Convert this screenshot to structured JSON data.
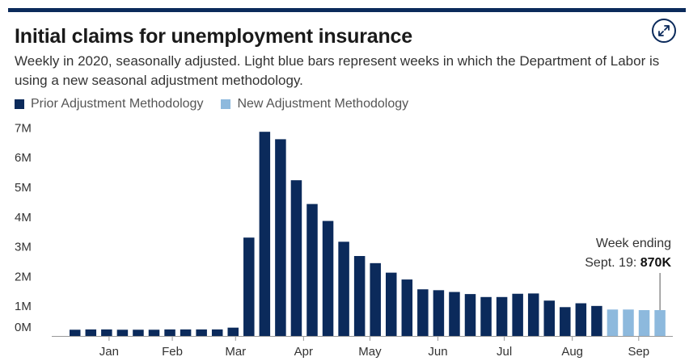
{
  "header": {
    "title": "Initial claims for unemployment insurance",
    "subtitle": "Weekly in 2020, seasonally adjusted. Light blue bars represent weeks in which the Department of Labor is using a new seasonal adjustment methodology.",
    "expand_icon": "expand-arrows-icon"
  },
  "colors": {
    "prior": "#0b2a5b",
    "new": "#8db9dd",
    "accent": "#0b2a5b"
  },
  "chart_data": {
    "type": "bar",
    "title": "Initial claims for unemployment insurance",
    "legend": [
      {
        "name": "Prior Adjustment Methodology",
        "color": "#0b2a5b"
      },
      {
        "name": "New Adjustment Methodology",
        "color": "#8db9dd"
      }
    ],
    "legend_position": "top-left",
    "y_ticks": [
      {
        "label": "0M",
        "value": 0.3
      },
      {
        "label": "1M",
        "value": 1
      },
      {
        "label": "2M",
        "value": 2
      },
      {
        "label": "3M",
        "value": 3
      },
      {
        "label": "4M",
        "value": 4
      },
      {
        "label": "5M",
        "value": 5
      },
      {
        "label": "6M",
        "value": 6
      },
      {
        "label": "7M",
        "value": 7
      }
    ],
    "ylim": [
      0,
      7
    ],
    "month_labels": [
      {
        "label": "Jan",
        "week": 2.5
      },
      {
        "label": "Feb",
        "week": 6.5
      },
      {
        "label": "Mar",
        "week": 10.5
      },
      {
        "label": "Apr",
        "week": 14.8
      },
      {
        "label": "May",
        "week": 19.0
      },
      {
        "label": "Jun",
        "week": 23.3
      },
      {
        "label": "Jul",
        "week": 27.5
      },
      {
        "label": "Aug",
        "week": 31.8
      },
      {
        "label": "Sep",
        "week": 36.0
      }
    ],
    "series": [
      {
        "name": "Prior Adjustment Methodology",
        "values": [
          0.21,
          0.22,
          0.22,
          0.21,
          0.21,
          0.21,
          0.22,
          0.22,
          0.22,
          0.22,
          0.28,
          3.31,
          6.87,
          6.62,
          5.24,
          4.44,
          3.87,
          3.17,
          2.69,
          2.45,
          2.13,
          1.9,
          1.57,
          1.54,
          1.48,
          1.41,
          1.31,
          1.31,
          1.42,
          1.43,
          1.19,
          0.97,
          1.1,
          1.01,
          null,
          null,
          null,
          null
        ]
      },
      {
        "name": "New Adjustment Methodology",
        "values": [
          null,
          null,
          null,
          null,
          null,
          null,
          null,
          null,
          null,
          null,
          null,
          null,
          null,
          null,
          null,
          null,
          null,
          null,
          null,
          null,
          null,
          null,
          null,
          null,
          null,
          null,
          null,
          null,
          null,
          null,
          null,
          null,
          null,
          null,
          0.89,
          0.89,
          0.87,
          0.87
        ]
      }
    ],
    "annotation": {
      "line1": "Week ending",
      "line2_prefix": "Sept. 19: ",
      "line2_value": "870K"
    },
    "grid": false
  }
}
